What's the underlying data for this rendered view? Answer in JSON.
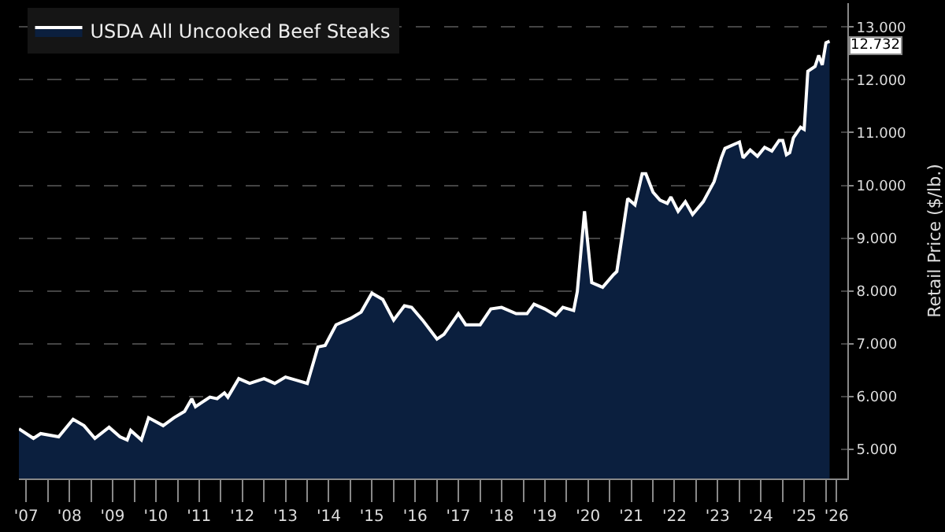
{
  "chart_data": {
    "type": "area",
    "ylabel": "Retail Price ($/lb.)",
    "legend": "top left",
    "grid": "y",
    "line_style": "solid",
    "xlim": [
      "2007-05-01",
      "2026-07-01"
    ],
    "ylim": [
      4.45,
      13.45
    ],
    "yticks": [
      {
        "value": 5,
        "label": "5.000"
      },
      {
        "value": 6,
        "label": "6.000"
      },
      {
        "value": 7,
        "label": "7.000"
      },
      {
        "value": 8,
        "label": "8.000"
      },
      {
        "value": 9,
        "label": "9.000"
      },
      {
        "value": 10,
        "label": "10.000"
      },
      {
        "value": 11,
        "label": "11.000"
      },
      {
        "value": 12,
        "label": "12.000"
      },
      {
        "value": 13,
        "label": "13.000"
      }
    ],
    "xticks": [
      {
        "value": "2007-07-01",
        "label": "'07"
      },
      {
        "value": "2008-01-01",
        "label": null
      },
      {
        "value": "2008-07-01",
        "label": "'08"
      },
      {
        "value": "2009-01-01",
        "label": null
      },
      {
        "value": "2009-07-01",
        "label": "'09"
      },
      {
        "value": "2010-01-01",
        "label": null
      },
      {
        "value": "2010-07-01",
        "label": "'10"
      },
      {
        "value": "2011-01-01",
        "label": null
      },
      {
        "value": "2011-07-01",
        "label": "'11"
      },
      {
        "value": "2012-01-01",
        "label": null
      },
      {
        "value": "2012-07-01",
        "label": "'12"
      },
      {
        "value": "2013-01-01",
        "label": null
      },
      {
        "value": "2013-07-01",
        "label": "'13"
      },
      {
        "value": "2014-01-01",
        "label": null
      },
      {
        "value": "2014-07-01",
        "label": "'14"
      },
      {
        "value": "2015-01-01",
        "label": null
      },
      {
        "value": "2015-07-01",
        "label": "'15"
      },
      {
        "value": "2016-01-01",
        "label": null
      },
      {
        "value": "2016-07-01",
        "label": "'16"
      },
      {
        "value": "2017-01-01",
        "label": null
      },
      {
        "value": "2017-07-01",
        "label": "'17"
      },
      {
        "value": "2018-01-01",
        "label": null
      },
      {
        "value": "2018-07-01",
        "label": "'18"
      },
      {
        "value": "2019-01-01",
        "label": null
      },
      {
        "value": "2019-07-01",
        "label": "'19"
      },
      {
        "value": "2020-01-01",
        "label": null
      },
      {
        "value": "2020-07-01",
        "label": "'20"
      },
      {
        "value": "2021-01-01",
        "label": null
      },
      {
        "value": "2021-07-01",
        "label": "'21"
      },
      {
        "value": "2022-01-01",
        "label": null
      },
      {
        "value": "2022-07-01",
        "label": "'22"
      },
      {
        "value": "2023-01-01",
        "label": null
      },
      {
        "value": "2023-07-01",
        "label": "'23"
      },
      {
        "value": "2024-01-01",
        "label": null
      },
      {
        "value": "2024-07-01",
        "label": "'24"
      },
      {
        "value": "2025-01-01",
        "label": null
      },
      {
        "value": "2025-07-01",
        "label": "'25"
      },
      {
        "value": "2026-01-01",
        "label": null
      },
      {
        "value": "2026-04-01",
        "label": "'26"
      }
    ],
    "annotations": [
      {
        "text": "12.732",
        "x": "2026-02",
        "y": 12.732
      }
    ],
    "series": [
      {
        "name": "USDA All Uncooked Beef Steaks",
        "color": "#ffffff",
        "x": [
          "2007-05",
          "2007-09",
          "2007-11",
          "2008-04",
          "2008-08",
          "2008-11",
          "2009-02",
          "2009-06",
          "2009-09",
          "2009-11",
          "2009-12",
          "2010-03",
          "2010-05",
          "2010-09",
          "2010-12",
          "2011-03",
          "2011-05",
          "2011-06",
          "2011-10",
          "2011-12",
          "2012-02",
          "2012-03",
          "2012-06",
          "2012-09",
          "2013-01",
          "2013-04",
          "2013-07",
          "2013-10",
          "2014-01",
          "2014-04",
          "2014-06",
          "2014-09",
          "2015-01",
          "2015-04",
          "2015-07",
          "2015-10",
          "2016-01",
          "2016-04",
          "2016-06",
          "2016-09",
          "2017-01",
          "2017-03",
          "2017-07",
          "2017-09",
          "2018-01",
          "2018-04",
          "2018-07",
          "2018-11",
          "2019-02",
          "2019-04",
          "2019-07",
          "2019-10",
          "2019-12",
          "2020-03",
          "2020-04",
          "2020-06",
          "2020-08",
          "2020-11",
          "2021-02",
          "2021-03",
          "2021-06",
          "2021-08",
          "2021-10",
          "2021-11",
          "2022-01",
          "2022-03",
          "2022-05",
          "2022-06",
          "2022-08",
          "2022-10",
          "2022-12",
          "2023-03",
          "2023-06",
          "2023-08",
          "2023-09",
          "2023-12",
          "2024-01",
          "2024-02",
          "2024-04",
          "2024-06",
          "2024-08",
          "2024-10",
          "2024-12",
          "2025-01",
          "2025-02",
          "2025-03",
          "2025-04",
          "2025-06",
          "2025-07",
          "2025-08",
          "2025-10",
          "2025-11",
          "2025-12",
          "2026-01",
          "2026-02"
        ],
        "values": [
          5.39,
          5.21,
          5.3,
          5.24,
          5.57,
          5.45,
          5.21,
          5.42,
          5.24,
          5.18,
          5.36,
          5.18,
          5.6,
          5.45,
          5.6,
          5.72,
          5.96,
          5.81,
          5.99,
          5.96,
          6.07,
          5.99,
          6.34,
          6.25,
          6.34,
          6.25,
          6.37,
          6.31,
          6.25,
          6.94,
          6.97,
          7.36,
          7.48,
          7.6,
          7.96,
          7.84,
          7.45,
          7.72,
          7.69,
          7.45,
          7.09,
          7.18,
          7.57,
          7.36,
          7.36,
          7.66,
          7.69,
          7.57,
          7.57,
          7.75,
          7.66,
          7.54,
          7.69,
          7.63,
          7.99,
          9.51,
          8.16,
          8.07,
          8.31,
          8.37,
          9.75,
          9.63,
          10.22,
          10.22,
          9.87,
          9.72,
          9.66,
          9.78,
          9.51,
          9.69,
          9.45,
          9.69,
          10.07,
          10.52,
          10.7,
          10.79,
          10.82,
          10.52,
          10.67,
          10.55,
          10.72,
          10.65,
          10.85,
          10.85,
          10.58,
          10.62,
          10.9,
          11.1,
          11.06,
          12.16,
          12.25,
          12.46,
          12.28,
          12.7,
          12.73
        ]
      }
    ]
  }
}
